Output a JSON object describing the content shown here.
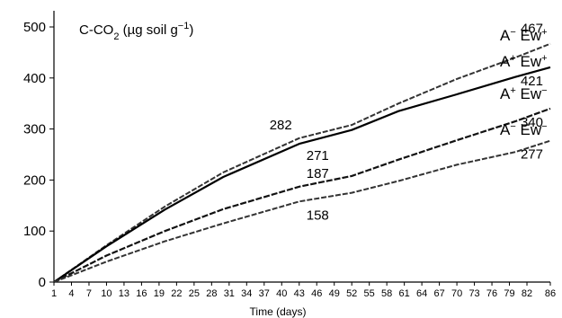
{
  "chart_data": {
    "type": "line",
    "title": "",
    "ylabel": "C-CO2 (µg soil g−1)",
    "ylabel_parts": {
      "base": "C-CO",
      "sub": "2",
      "rest": " (µg soil g",
      "sup": "−1",
      "close": ")"
    },
    "xlabel": "Time (days)",
    "ylim": [
      0,
      500
    ],
    "xlim": [
      1,
      86
    ],
    "yticks": [
      "0",
      "100",
      "200",
      "300",
      "400",
      "500"
    ],
    "xticks": [
      "1",
      "4",
      "7",
      "10",
      "13",
      "16",
      "19",
      "22",
      "25",
      "28",
      "31",
      "34",
      "37",
      "40",
      "43",
      "46",
      "49",
      "52",
      "55",
      "58",
      "61",
      "64",
      "67",
      "70",
      "73",
      "76",
      "79",
      "82",
      "86"
    ],
    "grid": false,
    "legend_placement": "right",
    "series": [
      {
        "name": "A− Ew+",
        "label_parts": {
          "a": "A",
          "a_sup": "−",
          "e": " Ew",
          "e_sup": "+"
        },
        "style": "dashed-light",
        "x": [
          1,
          10,
          20,
          30,
          43,
          52,
          60,
          70,
          80,
          86
        ],
        "y": [
          0,
          72,
          148,
          215,
          282,
          308,
          350,
          398,
          440,
          467
        ]
      },
      {
        "name": "A+ Ew+",
        "label_parts": {
          "a": "A",
          "a_sup": "+",
          "e": " Ew",
          "e_sup": "+"
        },
        "style": "solid",
        "x": [
          1,
          10,
          20,
          30,
          43,
          52,
          60,
          70,
          80,
          86
        ],
        "y": [
          0,
          70,
          142,
          206,
          271,
          298,
          335,
          368,
          402,
          421
        ]
      },
      {
        "name": "A+ Ew−",
        "label_parts": {
          "a": "A",
          "a_sup": "+",
          "e": " Ew",
          "e_sup": "−"
        },
        "style": "dashed",
        "x": [
          1,
          10,
          20,
          30,
          43,
          52,
          60,
          70,
          80,
          86
        ],
        "y": [
          0,
          52,
          100,
          143,
          187,
          208,
          240,
          278,
          315,
          340
        ]
      },
      {
        "name": "A− Ew−",
        "label_parts": {
          "a": "A",
          "a_sup": "−",
          "e": " Ew",
          "e_sup": "−"
        },
        "style": "dashed-light",
        "x": [
          1,
          10,
          20,
          30,
          43,
          52,
          60,
          70,
          80,
          86
        ],
        "y": [
          0,
          40,
          80,
          115,
          158,
          175,
          198,
          230,
          255,
          277
        ]
      }
    ],
    "annotations": [
      {
        "text": "467",
        "series": 0,
        "x": 86,
        "y": 467
      },
      {
        "text": "421",
        "series": 1,
        "x": 86,
        "y": 421
      },
      {
        "text": "340",
        "series": 2,
        "x": 86,
        "y": 340
      },
      {
        "text": "277",
        "series": 3,
        "x": 86,
        "y": 277
      },
      {
        "text": "282",
        "series": 0,
        "x": 43,
        "y": 282
      },
      {
        "text": "271",
        "series": 1,
        "x": 43,
        "y": 271
      },
      {
        "text": "187",
        "series": 2,
        "x": 43,
        "y": 187
      },
      {
        "text": "158",
        "series": 3,
        "x": 43,
        "y": 158
      }
    ]
  }
}
